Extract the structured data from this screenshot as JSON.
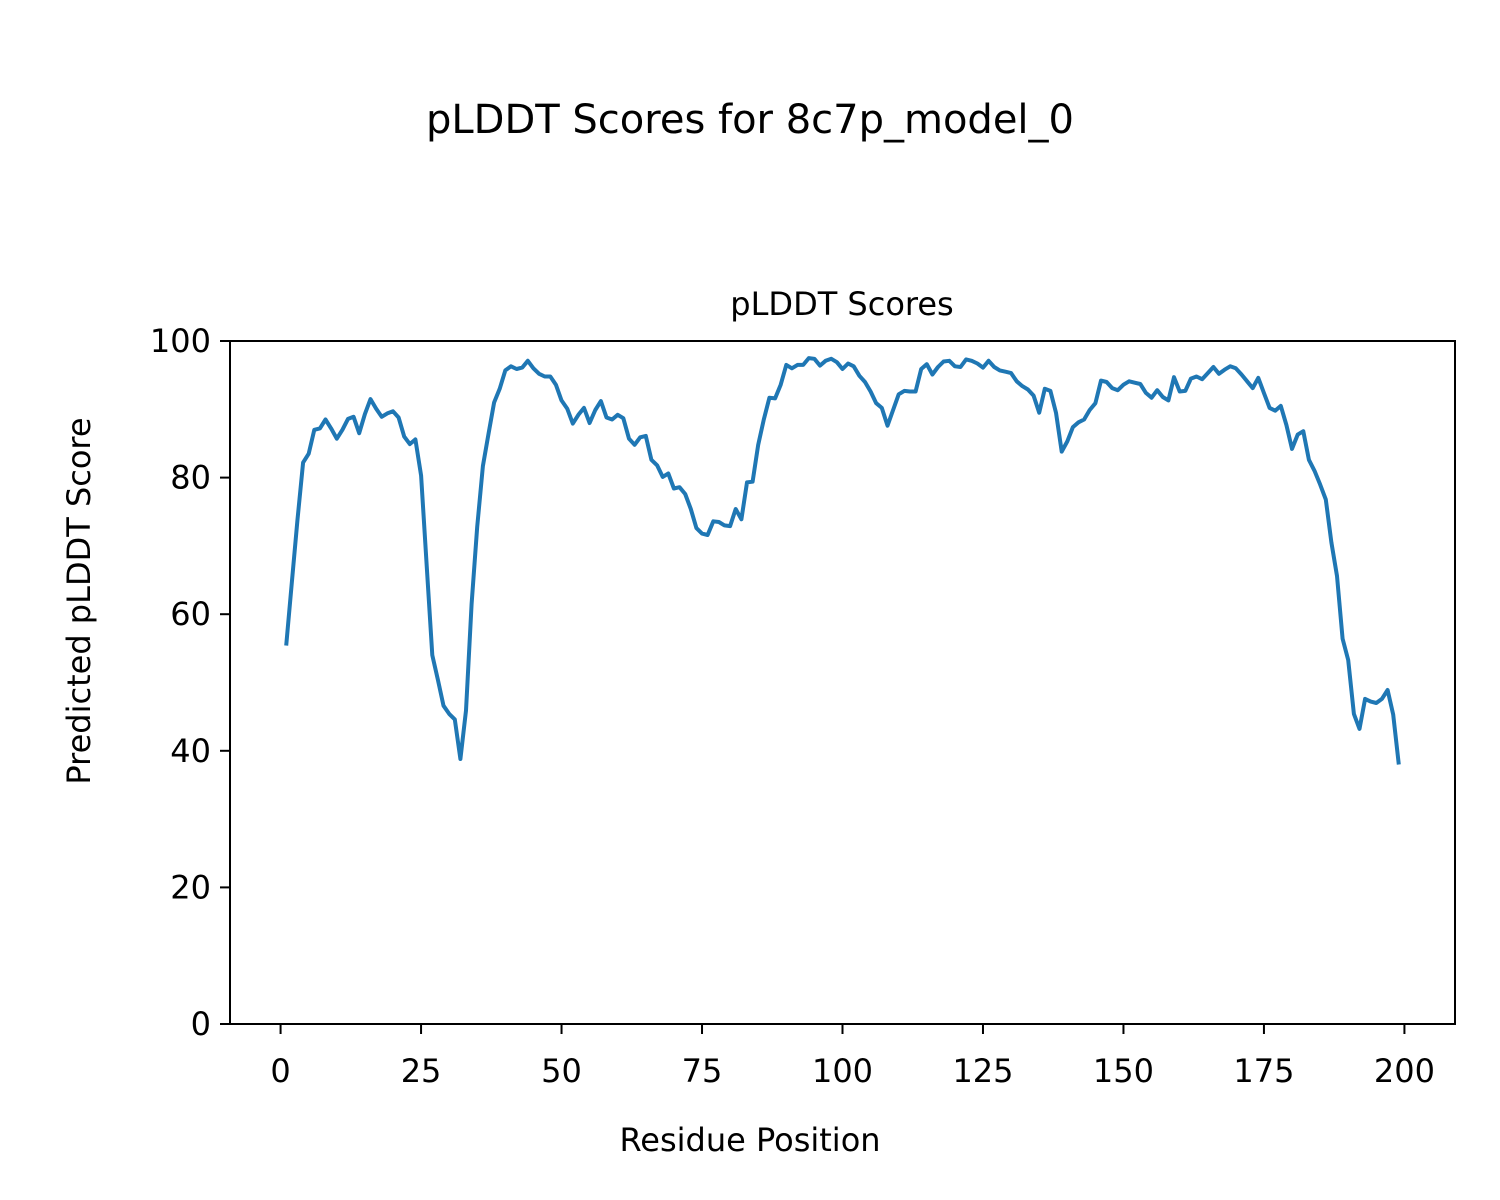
{
  "chart_data": {
    "type": "line",
    "suptitle": "pLDDT Scores for 8c7p_model_0",
    "title": "pLDDT Scores",
    "xlabel": "Residue Position",
    "ylabel": "Predicted pLDDT Score",
    "xlim": [
      -9,
      209
    ],
    "ylim": [
      0,
      100
    ],
    "xticks": [
      0,
      25,
      50,
      75,
      100,
      125,
      150,
      175,
      200
    ],
    "yticks": [
      0,
      20,
      40,
      60,
      80,
      100
    ],
    "grid": false,
    "line_color": "#1f77b4",
    "x_start": 1,
    "y": [
      55.4,
      64.6,
      73.7,
      82.2,
      83.5,
      87.0,
      87.2,
      88.5,
      87.2,
      85.7,
      87.0,
      88.6,
      88.9,
      86.5,
      89.3,
      91.5,
      90.1,
      88.9,
      89.4,
      89.7,
      88.8,
      86.0,
      84.9,
      85.6,
      80.3,
      67.1,
      54.0,
      50.4,
      46.6,
      45.4,
      44.6,
      38.8,
      45.9,
      61.5,
      72.8,
      81.7,
      86.4,
      91.0,
      93.0,
      95.7,
      96.3,
      95.9,
      96.1,
      97.1,
      96.0,
      95.2,
      94.8,
      94.8,
      93.6,
      91.3,
      90.1,
      87.9,
      89.2,
      90.2,
      88.0,
      89.9,
      91.2,
      88.8,
      88.5,
      89.2,
      88.7,
      85.7,
      84.8,
      85.9,
      86.1,
      82.6,
      81.8,
      80.1,
      80.6,
      78.4,
      78.6,
      77.6,
      75.4,
      72.6,
      71.8,
      71.6,
      73.6,
      73.5,
      73.0,
      72.9,
      75.4,
      73.9,
      79.3,
      79.4,
      84.8,
      88.5,
      91.7,
      91.6,
      93.6,
      96.5,
      96.0,
      96.5,
      96.5,
      97.5,
      97.4,
      96.4,
      97.1,
      97.4,
      96.9,
      95.9,
      96.7,
      96.3,
      94.9,
      94.0,
      92.6,
      90.9,
      90.2,
      87.6,
      89.9,
      92.2,
      92.7,
      92.6,
      92.6,
      95.9,
      96.6,
      95.1,
      96.2,
      97.0,
      97.1,
      96.3,
      96.2,
      97.3,
      97.1,
      96.7,
      96.1,
      97.1,
      96.2,
      95.7,
      95.5,
      95.3,
      94.1,
      93.4,
      92.9,
      92.0,
      89.5,
      93.0,
      92.7,
      89.5,
      83.8,
      85.3,
      87.4,
      88.1,
      88.5,
      89.9,
      90.9,
      94.2,
      94.0,
      93.1,
      92.8,
      93.6,
      94.1,
      93.9,
      93.7,
      92.4,
      91.7,
      92.8,
      91.8,
      91.3,
      94.7,
      92.6,
      92.7,
      94.5,
      94.8,
      94.4,
      95.3,
      96.2,
      95.2,
      95.8,
      96.3,
      96.0,
      95.1,
      94.1,
      93.1,
      94.6,
      92.4,
      90.2,
      89.8,
      90.5,
      87.7,
      84.2,
      86.3,
      86.8,
      82.6,
      81.0,
      79.0,
      76.8,
      70.5,
      65.6,
      56.4,
      53.3,
      45.4,
      43.2,
      47.6,
      47.2,
      47.0,
      47.6,
      48.9,
      45.3,
      38.0
    ]
  }
}
